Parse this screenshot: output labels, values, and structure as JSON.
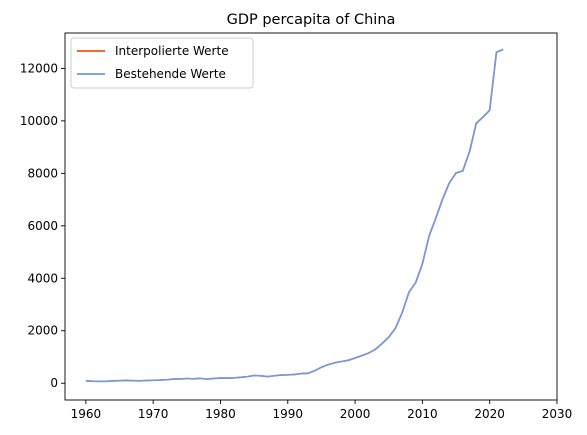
{
  "chart_data": {
    "type": "line",
    "title": "GDP percapita of China",
    "xlabel": "",
    "ylabel": "",
    "xlim": [
      1956.9,
      2030
    ],
    "ylim": [
      -640,
      13350
    ],
    "xticks": [
      1960,
      1970,
      1980,
      1990,
      2000,
      2010,
      2020,
      2030
    ],
    "yticks": [
      0,
      2000,
      4000,
      6000,
      8000,
      10000,
      12000
    ],
    "grid": false,
    "legend_position": "top-left",
    "series": [
      {
        "name": "Interpolierte Werte",
        "color": "#e8541a",
        "x": [
          1960,
          1961,
          1962,
          1963,
          1964,
          1965,
          1966,
          1967,
          1968,
          1969,
          1970,
          1971,
          1972,
          1973,
          1974,
          1975,
          1976,
          1977,
          1978,
          1979,
          1980,
          1981,
          1982,
          1983,
          1984,
          1985,
          1986,
          1987,
          1988,
          1989,
          1990,
          1991,
          1992,
          1993,
          1994,
          1995,
          1996,
          1997,
          1998,
          1999,
          2000,
          2001,
          2002,
          2003,
          2004,
          2005,
          2006,
          2007,
          2008,
          2009,
          2010,
          2011,
          2012,
          2013,
          2014,
          2015,
          2016,
          2017,
          2018,
          2019,
          2020,
          2021,
          2022
        ],
        "y": [
          90,
          76,
          70,
          74,
          85,
          98,
          104,
          97,
          91,
          100,
          113,
          119,
          132,
          157,
          160,
          178,
          165,
          185,
          156,
          183,
          195,
          197,
          203,
          225,
          251,
          294,
          282,
          251,
          284,
          310,
          318,
          333,
          366,
          377,
          473,
          610,
          709,
          781,
          828,
          873,
          959,
          1053,
          1149,
          1289,
          1509,
          1753,
          2099,
          2694,
          3468,
          3832,
          4550,
          5614,
          6301,
          7020,
          7636,
          8016,
          8094,
          8817,
          9905,
          10144,
          10409,
          12618,
          12720
        ]
      },
      {
        "name": "Bestehende Werte",
        "color": "#6f9ae6",
        "x": [
          1960,
          1961,
          1962,
          1963,
          1964,
          1965,
          1966,
          1967,
          1968,
          1969,
          1970,
          1971,
          1972,
          1973,
          1974,
          1975,
          1976,
          1977,
          1978,
          1979,
          1980,
          1981,
          1982,
          1983,
          1984,
          1985,
          1986,
          1987,
          1988,
          1989,
          1990,
          1991,
          1992,
          1993,
          1994,
          1995,
          1996,
          1997,
          1998,
          1999,
          2000,
          2001,
          2002,
          2003,
          2004,
          2005,
          2006,
          2007,
          2008,
          2009,
          2010,
          2011,
          2012,
          2013,
          2014,
          2015,
          2016,
          2017,
          2018,
          2019,
          2020,
          2021,
          2022
        ],
        "y": [
          90,
          76,
          70,
          74,
          85,
          98,
          104,
          97,
          91,
          100,
          113,
          119,
          132,
          157,
          160,
          178,
          165,
          185,
          156,
          183,
          195,
          197,
          203,
          225,
          251,
          294,
          282,
          251,
          284,
          310,
          318,
          333,
          366,
          377,
          473,
          610,
          709,
          781,
          828,
          873,
          959,
          1053,
          1149,
          1289,
          1509,
          1753,
          2099,
          2694,
          3468,
          3832,
          4550,
          5614,
          6301,
          7020,
          7636,
          8016,
          8094,
          8817,
          9905,
          10144,
          10409,
          12618,
          12720
        ]
      }
    ]
  }
}
